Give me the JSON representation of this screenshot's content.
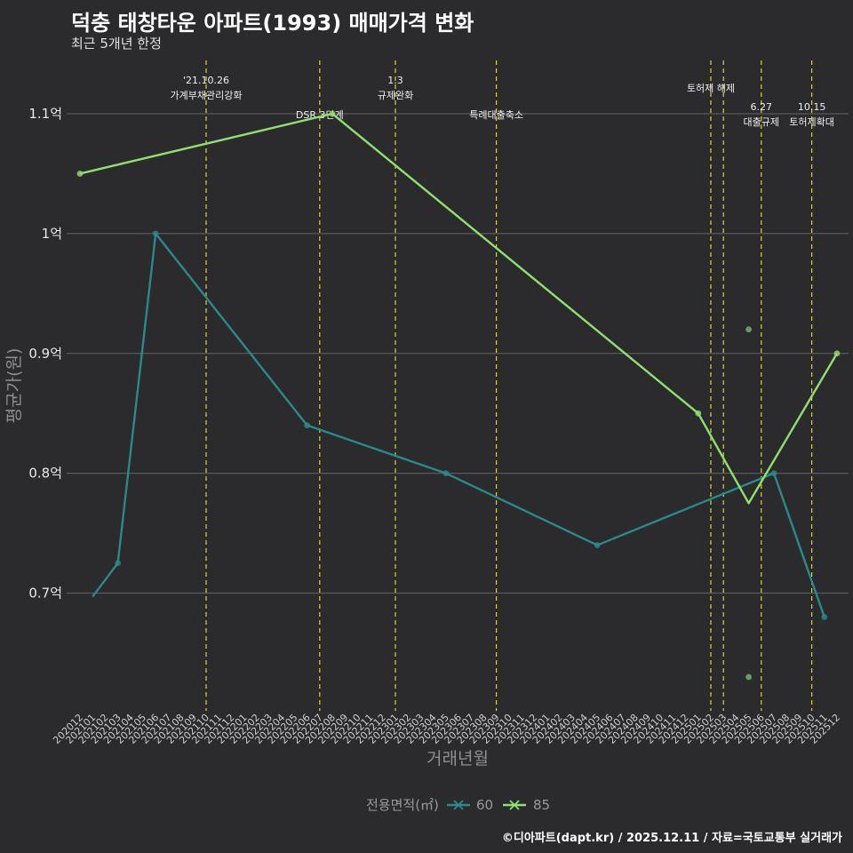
{
  "header": {
    "title": "덕충 태창타운 아파트(1993) 매매가격 변화",
    "subtitle": "최근 5개년 한정"
  },
  "footer": {
    "caption": "©디아파트(dapt.kr) / 2025.12.11 / 자료=국토교통부 실거래가"
  },
  "colors": {
    "background": "#2b2a2c",
    "grid": "#5a5a5a",
    "event_line": "#d9d92a",
    "series_60": "#2a8a8a",
    "series_85": "#90e070",
    "point_85_extra": "#6aa86a"
  },
  "chart_data": {
    "type": "line",
    "title": "덕충 태창타운 아파트(1993) 매매가격 변화",
    "subtitle": "최근 5개년 한정",
    "xlabel": "거래년월",
    "ylabel": "평균가(원)",
    "legend_title": "전용면적(㎡)",
    "legend_position": "bottom",
    "ylim": [
      0.6,
      1.15
    ],
    "y_unit": "억",
    "yticks": [
      {
        "value": 0.7,
        "label": "0.7억"
      },
      {
        "value": 0.8,
        "label": "0.8억"
      },
      {
        "value": 0.9,
        "label": "0.9억"
      },
      {
        "value": 1.0,
        "label": "1억"
      },
      {
        "value": 1.1,
        "label": "1.1억"
      }
    ],
    "categories": [
      "202012",
      "202101",
      "202102",
      "202103",
      "202104",
      "202105",
      "202106",
      "202107",
      "202108",
      "202109",
      "202110",
      "202111",
      "202112",
      "202201",
      "202202",
      "202203",
      "202204",
      "202205",
      "202206",
      "202207",
      "202208",
      "202209",
      "202210",
      "202211",
      "202212",
      "202301",
      "202302",
      "202303",
      "202304",
      "202305",
      "202306",
      "202307",
      "202308",
      "202309",
      "202310",
      "202311",
      "202312",
      "202401",
      "202402",
      "202403",
      "202404",
      "202405",
      "202406",
      "202407",
      "202408",
      "202409",
      "202410",
      "202411",
      "202412",
      "202501",
      "202502",
      "202503",
      "202504",
      "202505",
      "202506",
      "202507",
      "202508",
      "202509",
      "202510",
      "202511",
      "202512"
    ],
    "series": [
      {
        "name": "60",
        "points": [
          {
            "x": "202101",
            "y": 0.697
          },
          {
            "x": "202103",
            "y": 0.725
          },
          {
            "x": "202106",
            "y": 1.0
          },
          {
            "x": "202206",
            "y": 0.84
          },
          {
            "x": "202305",
            "y": 0.8
          },
          {
            "x": "202405",
            "y": 0.74
          },
          {
            "x": "202507",
            "y": 0.8
          },
          {
            "x": "202511",
            "y": 0.68
          }
        ],
        "show_first_marker": false
      },
      {
        "name": "85",
        "points": [
          {
            "x": "202012",
            "y": 1.05
          },
          {
            "x": "202208",
            "y": 1.1
          },
          {
            "x": "202501",
            "y": 0.85
          },
          {
            "x": "202505",
            "y": 0.775
          },
          {
            "x": "202512",
            "y": 0.9
          }
        ],
        "hidden_markers": [
          "202505"
        ],
        "extra_points": [
          {
            "x": "202505",
            "y": 0.92
          },
          {
            "x": "202505",
            "y": 0.63
          }
        ]
      }
    ],
    "events": [
      {
        "x": "202110",
        "lines": [
          "'21.10.26",
          "가계부채관리강화"
        ],
        "level": 0
      },
      {
        "x": "202207",
        "lines": [
          "DSR 3단계"
        ],
        "level": 2
      },
      {
        "x": "202301",
        "lines": [
          "1.3",
          "규제완화"
        ],
        "level": 0
      },
      {
        "x": "202309",
        "lines": [
          "특례대출축소"
        ],
        "level": 2
      },
      {
        "x": "202502",
        "lines": [
          "토허제 해제"
        ],
        "level": 1
      },
      {
        "x": "202503",
        "lines": [],
        "level": 1
      },
      {
        "x": "202506",
        "lines": [
          "6.27",
          "대출규제"
        ],
        "level": 3
      },
      {
        "x": "202510",
        "lines": [
          "10.15",
          "토허제확대"
        ],
        "level": 3
      }
    ]
  }
}
